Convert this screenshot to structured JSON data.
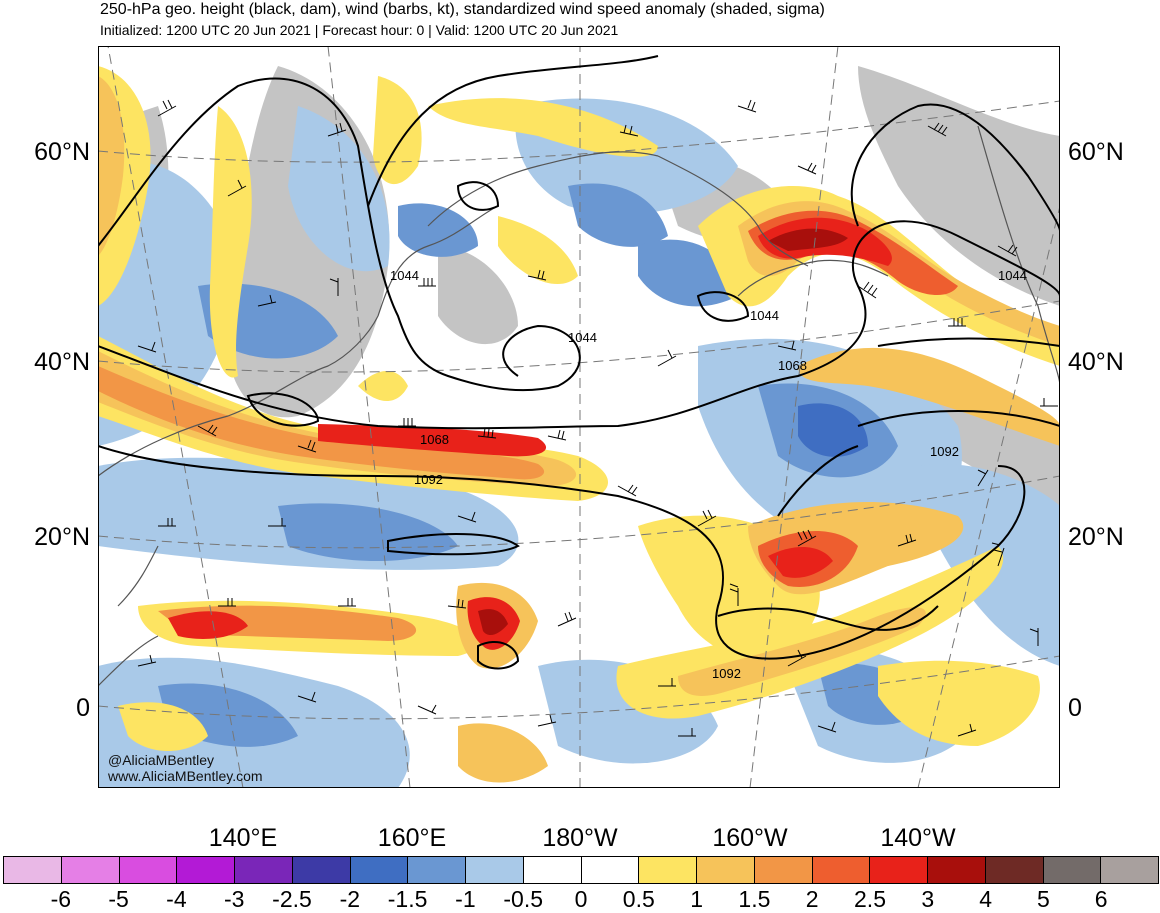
{
  "header": {
    "title": "250-hPa geo. height (black, dam), wind (barbs, kt), standardized wind speed anomaly (shaded, sigma)",
    "subtitle": "Initialized: 1200 UTC 20 Jun 2021 | Forecast hour: 0 | Valid: 1200 UTC 20 Jun 2021"
  },
  "axes": {
    "lat_labels": [
      "60°N",
      "40°N",
      "20°N",
      "0"
    ],
    "lon_labels": [
      "140°E",
      "160°E",
      "180°W",
      "160°W",
      "140°W"
    ]
  },
  "contours": {
    "labels": [
      "1044",
      "1044",
      "1044",
      "1044",
      "1068",
      "1068",
      "1092",
      "1092",
      "1092"
    ]
  },
  "credits": {
    "handle": "@AliciaMBentley",
    "site": "www.AliciaMBentley.com"
  },
  "colorbar": {
    "labels": [
      "-6",
      "-5",
      "-4",
      "-3",
      "-2.5",
      "-2",
      "-1.5",
      "-1",
      "-0.5",
      "0",
      "0.5",
      "1",
      "1.5",
      "2",
      "2.5",
      "3",
      "4",
      "5",
      "6"
    ],
    "colors": [
      "#e9b8e6",
      "#e57fe6",
      "#d94de0",
      "#b31ad6",
      "#7a26b8",
      "#3d3aa6",
      "#3f6ec2",
      "#6a97d2",
      "#a9c9e8",
      "#ffffff",
      "#ffffff",
      "#fde462",
      "#f6c35a",
      "#f29646",
      "#ee5e2f",
      "#e8221a",
      "#a80f0c",
      "#6e2a25",
      "#736b69",
      "#a8a09e"
    ]
  },
  "map_colors": {
    "ocean_base": "#ffffff",
    "land_gray": "#c4c4c4",
    "coast": "#555555"
  }
}
